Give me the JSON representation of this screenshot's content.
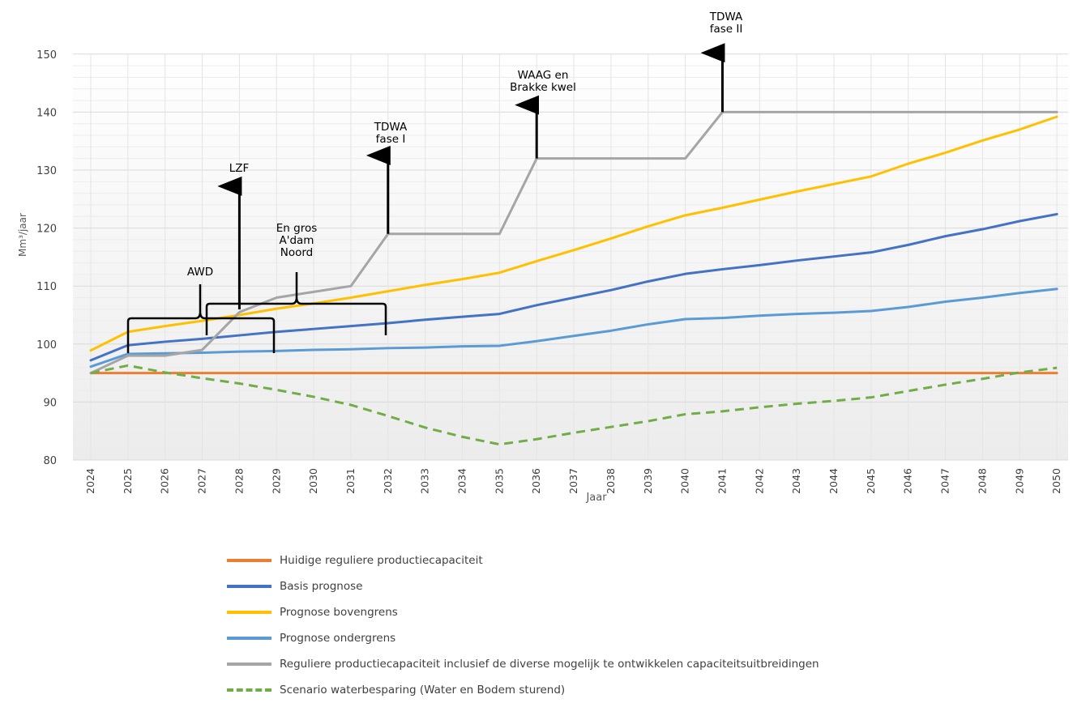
{
  "chart_data": {
    "type": "line",
    "xlabel": "Jaar",
    "ylabel": "Mm³/jaar",
    "ylim": [
      80,
      150
    ],
    "yticks": [
      80,
      90,
      100,
      110,
      120,
      130,
      140,
      150
    ],
    "grid": true,
    "legend_position": "bottom",
    "categories": [
      "2024",
      "2025",
      "2026",
      "2027",
      "2028",
      "2029",
      "2030",
      "2031",
      "2032",
      "2033",
      "2034",
      "2035",
      "2036",
      "2037",
      "2038",
      "2039",
      "2040",
      "2041",
      "2042",
      "2043",
      "2044",
      "2045",
      "2046",
      "2047",
      "2048",
      "2049",
      "2050"
    ],
    "series": [
      {
        "name": "Huidige reguliere productiecapaciteit",
        "color": "#ED7D31",
        "dashed": false,
        "values": [
          95,
          95,
          95,
          95,
          95,
          95,
          95,
          95,
          95,
          95,
          95,
          95,
          95,
          95,
          95,
          95,
          95,
          95,
          95,
          95,
          95,
          95,
          95,
          95,
          95,
          95,
          95
        ]
      },
      {
        "name": "Basis prognose",
        "color": "#4472C4",
        "dashed": false,
        "values": [
          97.2,
          99.8,
          100.4,
          100.9,
          101.5,
          102.1,
          102.6,
          103.1,
          103.6,
          104.2,
          104.7,
          105.2,
          106.7,
          108.0,
          109.3,
          110.8,
          112.1,
          112.9,
          113.6,
          114.4,
          115.1,
          115.8,
          117.1,
          118.6,
          119.8,
          121.2,
          122.4
        ]
      },
      {
        "name": "Prognose bovengrens",
        "color": "#FFC000",
        "dashed": false,
        "values": [
          98.9,
          102.1,
          103.1,
          104.0,
          105.0,
          106.1,
          107.0,
          108.0,
          109.1,
          110.2,
          111.2,
          112.3,
          114.3,
          116.2,
          118.2,
          120.3,
          122.2,
          123.5,
          124.9,
          126.3,
          127.6,
          128.9,
          131.1,
          133.0,
          135.1,
          137.0,
          139.2
        ]
      },
      {
        "name": "Prognose ondergrens",
        "color": "#5B9BD5",
        "dashed": false,
        "values": [
          96.1,
          98.3,
          98.4,
          98.5,
          98.7,
          98.8,
          99.0,
          99.1,
          99.3,
          99.4,
          99.6,
          99.7,
          100.5,
          101.4,
          102.3,
          103.4,
          104.3,
          104.5,
          104.9,
          105.2,
          105.4,
          105.7,
          106.4,
          107.3,
          108.0,
          108.8,
          109.5
        ]
      },
      {
        "name": "Reguliere productiecapaciteit inclusief de diverse mogelijk te ontwikkelen capaciteitsuitbreidingen",
        "color": "#A5A5A5",
        "dashed": false,
        "values": [
          95,
          98,
          98,
          99,
          105.5,
          108,
          109,
          110,
          119,
          119,
          119,
          119,
          132,
          132,
          132,
          132,
          132,
          140,
          140,
          140,
          140,
          140,
          140,
          140,
          140,
          140,
          140
        ]
      },
      {
        "name": "Scenario waterbesparing (Water en Bodem sturend)",
        "color": "#70AD47",
        "dashed": true,
        "values": [
          95,
          96.3,
          95.1,
          94.1,
          93.2,
          92.1,
          90.9,
          89.5,
          87.6,
          85.6,
          84.0,
          82.7,
          83.6,
          84.7,
          85.7,
          86.7,
          87.9,
          88.4,
          89.1,
          89.7,
          90.2,
          90.8,
          91.9,
          93.0,
          94.0,
          95.1,
          95.9
        ]
      }
    ],
    "annotations": [
      {
        "label": "AWD",
        "lines": [
          "AWD"
        ],
        "x": "2027",
        "arrow_to": null
      },
      {
        "label": "LZF",
        "lines": [
          "LZF"
        ],
        "x": "2028",
        "arrow_to": 127.5
      },
      {
        "label": "En gros A'dam Noord",
        "lines": [
          "En gros",
          "A'dam",
          "Noord"
        ],
        "x": "2029.5",
        "arrow_to": null
      },
      {
        "label": "TDWA fase I",
        "lines": [
          "TDWA",
          "fase I"
        ],
        "x": "2032",
        "arrow_to": 132.8
      },
      {
        "label": "WAAG en Brakke kwel",
        "lines": [
          "WAAG en",
          "Brakke kwel"
        ],
        "x": "2036",
        "arrow_to": 141.5
      },
      {
        "label": "TDWA fase II",
        "lines": [
          "TDWA",
          "fase II"
        ],
        "x": "2041",
        "arrow_to": 150.5
      }
    ]
  }
}
